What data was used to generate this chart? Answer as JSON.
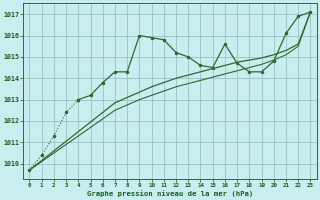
{
  "x": [
    0,
    1,
    2,
    3,
    4,
    5,
    6,
    7,
    8,
    9,
    10,
    11,
    12,
    13,
    14,
    15,
    16,
    17,
    18,
    19,
    20,
    21,
    22,
    23
  ],
  "line_main": [
    1009.7,
    1010.4,
    1011.3,
    1012.4,
    1013.0,
    1013.2,
    1013.8,
    1014.3,
    1014.3,
    1016.0,
    1015.9,
    1015.8,
    1015.2,
    1015.0,
    1014.6,
    1014.5,
    1015.6,
    1014.7,
    1014.3,
    1014.3,
    1014.8,
    1016.1,
    1016.9,
    1017.1
  ],
  "line_main_dotted_end": 4,
  "line_straight1": [
    1009.7,
    1010.15,
    1010.6,
    1011.05,
    1011.5,
    1011.95,
    1012.4,
    1012.85,
    1013.1,
    1013.35,
    1013.6,
    1013.8,
    1014.0,
    1014.15,
    1014.3,
    1014.45,
    1014.6,
    1014.75,
    1014.85,
    1014.95,
    1015.1,
    1015.3,
    1015.6,
    1017.1
  ],
  "line_straight2": [
    1009.7,
    1010.1,
    1010.5,
    1010.9,
    1011.3,
    1011.7,
    1012.1,
    1012.5,
    1012.75,
    1013.0,
    1013.2,
    1013.4,
    1013.6,
    1013.75,
    1013.9,
    1014.05,
    1014.2,
    1014.35,
    1014.5,
    1014.65,
    1014.85,
    1015.1,
    1015.5,
    1017.1
  ],
  "ylim": [
    1009.3,
    1017.5
  ],
  "yticks": [
    1010,
    1011,
    1012,
    1013,
    1014,
    1015,
    1016,
    1017
  ],
  "xticks": [
    0,
    1,
    2,
    3,
    4,
    5,
    6,
    7,
    8,
    9,
    10,
    11,
    12,
    13,
    14,
    15,
    16,
    17,
    18,
    19,
    20,
    21,
    22,
    23
  ],
  "line_color": "#2d6a2d",
  "bg_color": "#c8eef0",
  "grid_color": "#8bbcbc",
  "xlabel": "Graphe pression niveau de la mer (hPa)",
  "tick_color": "#1a5c1a"
}
